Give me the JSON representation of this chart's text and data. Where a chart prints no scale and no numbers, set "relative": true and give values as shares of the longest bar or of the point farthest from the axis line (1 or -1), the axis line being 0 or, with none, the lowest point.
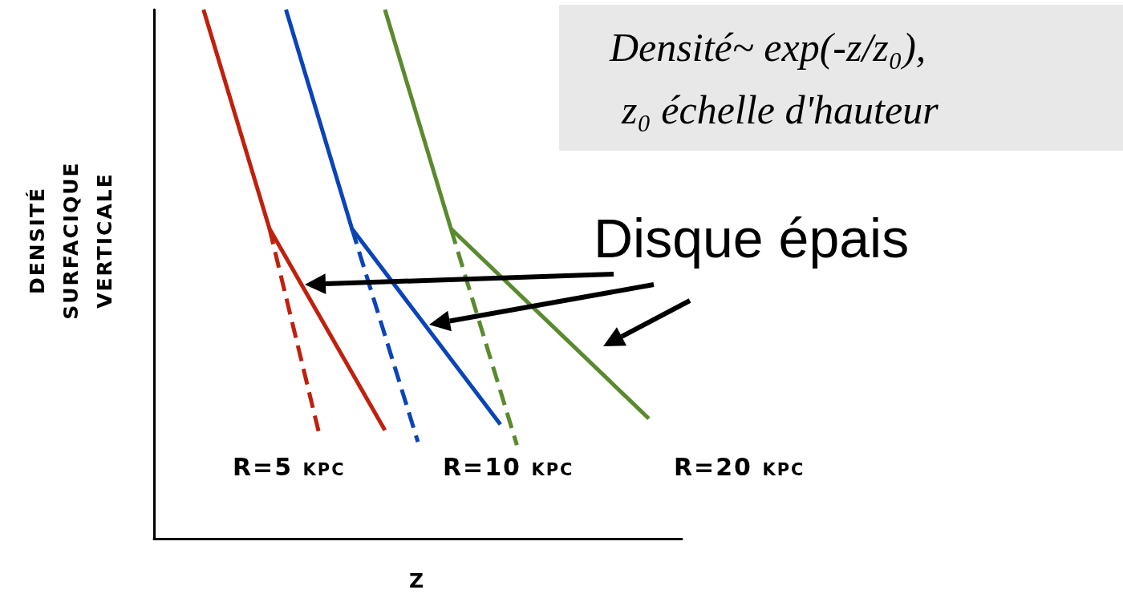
{
  "chart_data": {
    "type": "line",
    "relative": true,
    "xlabel": "z",
    "ylabel": "Densité surfacique verticale",
    "categories": [
      null,
      null,
      null,
      null,
      null,
      null,
      null,
      null,
      null,
      null,
      null,
      null,
      null,
      null,
      null,
      null,
      null,
      null,
      null,
      null,
      null,
      null,
      null,
      null,
      null,
      null,
      null,
      null,
      null,
      null,
      null,
      null,
      null
    ],
    "series": [
      {
        "name": "R=5 kpc",
        "color": "#c0200e",
        "values": [
          null,
          null,
          null,
          1,
          null,
          null,
          null,
          0.586,
          null,
          null,
          null,
          null,
          null,
          null,
          0.205,
          null,
          null,
          null,
          null,
          null,
          null,
          null,
          null,
          null,
          null,
          null,
          null,
          null,
          null,
          null,
          null,
          null,
          null
        ]
      },
      {
        "name": "R=10 kpc",
        "color": "#0a44b8",
        "values": [
          null,
          null,
          null,
          null,
          null,
          null,
          null,
          null,
          1,
          null,
          null,
          null,
          0.586,
          null,
          null,
          null,
          null,
          null,
          null,
          null,
          null,
          0.216,
          null,
          null,
          null,
          null,
          null,
          null,
          null,
          null,
          null,
          null,
          null
        ]
      },
      {
        "name": "R=20 kpc",
        "color": "#5a8a2e",
        "values": [
          null,
          null,
          null,
          null,
          null,
          null,
          null,
          null,
          null,
          null,
          null,
          null,
          null,
          null,
          1,
          null,
          null,
          null,
          0.586,
          null,
          null,
          null,
          null,
          null,
          null,
          null,
          null,
          null,
          null,
          null,
          0.227,
          null,
          null
        ]
      },
      {
        "color": "#c0200e",
        "line_style": "dashed",
        "values": [
          null,
          null,
          null,
          null,
          null,
          null,
          null,
          0.586,
          null,
          null,
          0.2,
          null,
          null,
          null,
          null,
          null,
          null,
          null,
          null,
          null,
          null,
          null,
          null,
          null,
          null,
          null,
          null,
          null,
          null,
          null,
          null,
          null,
          null
        ]
      },
      {
        "color": "#0a44b8",
        "line_style": "dashed",
        "values": [
          null,
          null,
          null,
          null,
          null,
          null,
          null,
          null,
          null,
          null,
          null,
          null,
          0.586,
          null,
          null,
          null,
          0.183,
          null,
          null,
          null,
          null,
          null,
          null,
          null,
          null,
          null,
          null,
          null,
          null,
          null,
          null,
          null,
          null
        ]
      },
      {
        "color": "#5a8a2e",
        "line_style": "dashed",
        "values": [
          null,
          null,
          null,
          null,
          null,
          null,
          null,
          null,
          null,
          null,
          null,
          null,
          null,
          null,
          null,
          null,
          null,
          null,
          0.586,
          null,
          null,
          null,
          0.177,
          null,
          null,
          null,
          null,
          null,
          null,
          null,
          null,
          null,
          null
        ]
      }
    ],
    "annotations": [
      "Densité~ exp(-z/z₀),",
      "z₀ échelle d'hauteur",
      "Disque épais"
    ],
    "marker": "none",
    "line_style": "solid",
    "grid": false,
    "legend": false
  }
}
